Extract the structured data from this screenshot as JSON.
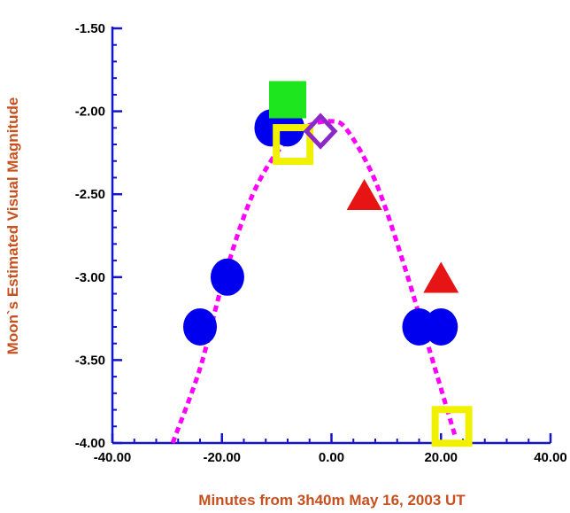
{
  "chart_data": {
    "type": "scatter",
    "title": "",
    "xlabel": "Minutes from 3h40m May 16, 2003 UT",
    "ylabel": "Moon`s Estimated Visual Magnitude",
    "xlim": [
      -40,
      40
    ],
    "ylim": [
      -1.5,
      -4.0
    ],
    "y_inverted": true,
    "grid": false,
    "legend": "none",
    "x_ticks": [
      "-40.00",
      "-20.00",
      "0.00",
      "20.00",
      "40.00"
    ],
    "y_ticks": [
      "-1.50",
      "-2.00",
      "-2.50",
      "-3.00",
      "-3.50",
      "-4.00"
    ],
    "axis_color": "#1414c8",
    "label_color": "#c8501e",
    "series": [
      {
        "marker": "circle",
        "color": "#0000ee",
        "points": [
          {
            "x": -24,
            "y": -3.3
          },
          {
            "x": -19,
            "y": -3.0
          },
          {
            "x": -11,
            "y": -2.1
          },
          {
            "x": -8,
            "y": -2.1
          },
          {
            "x": 16,
            "y": -3.3
          },
          {
            "x": 20,
            "y": -3.3
          }
        ]
      },
      {
        "marker": "filled-square",
        "color": "#1ee61e",
        "points": [
          {
            "x": -8,
            "y": -1.93
          }
        ]
      },
      {
        "marker": "hollow-square",
        "color": "#f0f000",
        "points": [
          {
            "x": -7,
            "y": -2.2
          },
          {
            "x": 22,
            "y": -3.9
          }
        ]
      },
      {
        "marker": "hollow-diamond",
        "color": "#8c28c8",
        "points": [
          {
            "x": -2,
            "y": -2.12
          }
        ]
      },
      {
        "marker": "triangle",
        "color": "#e61414",
        "points": [
          {
            "x": 6,
            "y": -2.52
          },
          {
            "x": 20,
            "y": -3.02
          }
        ]
      }
    ],
    "fit_curve": {
      "style": "dashed",
      "color": "#ff00ff",
      "points": [
        {
          "x": -29,
          "y": -4.0
        },
        {
          "x": -24,
          "y": -3.55
        },
        {
          "x": -20,
          "y": -3.05
        },
        {
          "x": -15,
          "y": -2.55
        },
        {
          "x": -10,
          "y": -2.25
        },
        {
          "x": -5,
          "y": -2.1
        },
        {
          "x": 0,
          "y": -2.06
        },
        {
          "x": 3,
          "y": -2.12
        },
        {
          "x": 8,
          "y": -2.42
        },
        {
          "x": 13,
          "y": -2.9
        },
        {
          "x": 18,
          "y": -3.45
        },
        {
          "x": 22.5,
          "y": -3.95
        }
      ]
    }
  }
}
